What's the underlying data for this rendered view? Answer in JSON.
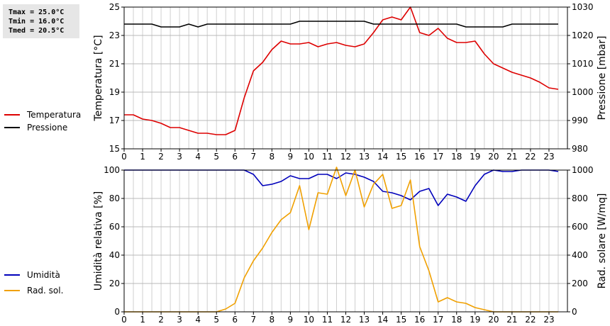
{
  "stats": {
    "tmax": "Tmax = 25.0°C",
    "tmin": "Tmin = 16.0°C",
    "tmed": "Tmed = 20.5°C"
  },
  "legend_top": [
    {
      "label": "Temperatura",
      "color": "#dd0000"
    },
    {
      "label": "Pressione",
      "color": "#000000"
    }
  ],
  "legend_bottom": [
    {
      "label": "Umidità",
      "color": "#0000bb"
    },
    {
      "label": "Rad. sol.",
      "color": "#f0a000"
    }
  ],
  "chart_data": [
    {
      "type": "line",
      "xlabel": "",
      "x_ticks": [
        "0",
        "1",
        "2",
        "3",
        "4",
        "5",
        "6",
        "7",
        "8",
        "9",
        "10",
        "11",
        "12",
        "13",
        "14",
        "15",
        "16",
        "17",
        "18",
        "19",
        "20",
        "21",
        "22",
        "23"
      ],
      "xlim": [
        0,
        24
      ],
      "ylabel_left": "Temperatura [°C]",
      "ylabel_right": "Pressione [mbar]",
      "ylim_left": [
        15,
        25
      ],
      "ylim_right": [
        980,
        1030
      ],
      "yticks_left": [
        15,
        17,
        19,
        21,
        23,
        25
      ],
      "yticks_right": [
        980,
        990,
        1000,
        1010,
        1020,
        1030
      ],
      "grid": true,
      "series": [
        {
          "name": "Temperatura",
          "axis": "left",
          "color": "#dd0000",
          "x": [
            0,
            0.5,
            1,
            1.5,
            2,
            2.5,
            3,
            3.5,
            4,
            4.5,
            5,
            5.5,
            6,
            6.5,
            7,
            7.5,
            8,
            8.5,
            9,
            9.5,
            10,
            10.5,
            11,
            11.5,
            12,
            12.5,
            13,
            13.5,
            14,
            14.5,
            15,
            15.5,
            16,
            16.5,
            17,
            17.5,
            18,
            18.5,
            19,
            19.5,
            20,
            20.5,
            21,
            21.5,
            22,
            22.5,
            23,
            23.5
          ],
          "values": [
            17.4,
            17.4,
            17.1,
            17.0,
            16.8,
            16.5,
            16.5,
            16.3,
            16.1,
            16.1,
            16.0,
            16.0,
            16.3,
            18.6,
            20.5,
            21.1,
            22.0,
            22.6,
            22.4,
            22.4,
            22.5,
            22.2,
            22.4,
            22.5,
            22.3,
            22.2,
            22.4,
            23.2,
            24.1,
            24.3,
            24.1,
            25.0,
            23.2,
            23.0,
            23.5,
            22.8,
            22.5,
            22.5,
            22.6,
            21.7,
            21.0,
            20.7,
            20.4,
            20.2,
            20.0,
            19.7,
            19.3,
            19.2
          ]
        },
        {
          "name": "Pressione",
          "axis": "right",
          "color": "#000000",
          "x": [
            0,
            1.5,
            2,
            3,
            3.5,
            4,
            4.5,
            9,
            9.5,
            13,
            13.5,
            18,
            18.5,
            20.5,
            21,
            23.5
          ],
          "values": [
            1024,
            1024,
            1023,
            1023,
            1024,
            1023,
            1024,
            1024,
            1025,
            1025,
            1024,
            1024,
            1023,
            1023,
            1024,
            1024
          ]
        }
      ]
    },
    {
      "type": "line",
      "xlabel": "",
      "x_ticks": [
        "0",
        "1",
        "2",
        "3",
        "4",
        "5",
        "6",
        "7",
        "8",
        "9",
        "10",
        "11",
        "12",
        "13",
        "14",
        "15",
        "16",
        "17",
        "18",
        "19",
        "20",
        "21",
        "22",
        "23"
      ],
      "xlim": [
        0,
        24
      ],
      "ylabel_left": "Umidità relativa [%]",
      "ylabel_right": "Rad. solare [W/mq]",
      "ylim_left": [
        0,
        100
      ],
      "ylim_right": [
        0,
        1000
      ],
      "yticks_left": [
        0,
        20,
        40,
        60,
        80,
        100
      ],
      "yticks_right": [
        0,
        200,
        400,
        600,
        800,
        1000
      ],
      "grid": true,
      "series": [
        {
          "name": "Umidità",
          "axis": "left",
          "color": "#0000bb",
          "x": [
            0,
            6.5,
            7,
            7.5,
            8,
            8.5,
            9,
            9.5,
            10,
            10.5,
            11,
            11.5,
            12,
            12.5,
            13,
            13.5,
            14,
            14.5,
            15,
            15.5,
            16,
            16.5,
            17,
            17.5,
            18,
            18.5,
            19,
            19.5,
            20,
            20.5,
            21,
            21.5,
            22,
            22.5,
            23,
            23.5
          ],
          "values": [
            100,
            100,
            97,
            89,
            90,
            92,
            96,
            94,
            94,
            97,
            97,
            94,
            98,
            97,
            95,
            92,
            85,
            84,
            82,
            79,
            85,
            87,
            75,
            83,
            81,
            78,
            89,
            97,
            100,
            99,
            99,
            100,
            100,
            100,
            100,
            99
          ]
        },
        {
          "name": "Rad. sol.",
          "axis": "right",
          "color": "#f0a000",
          "x": [
            0,
            5,
            5.5,
            6,
            6.5,
            7,
            7.5,
            8,
            8.5,
            9,
            9.5,
            10,
            10.5,
            11,
            11.5,
            12,
            12.5,
            13,
            13.5,
            14,
            14.5,
            15,
            15.5,
            16,
            16.5,
            17,
            17.5,
            18,
            18.5,
            19,
            19.5,
            20,
            23.5
          ],
          "values": [
            0,
            0,
            20,
            60,
            240,
            360,
            450,
            560,
            650,
            700,
            890,
            580,
            840,
            830,
            1020,
            820,
            1000,
            740,
            900,
            970,
            730,
            750,
            930,
            460,
            290,
            70,
            100,
            70,
            60,
            30,
            15,
            0,
            0
          ]
        }
      ]
    }
  ]
}
